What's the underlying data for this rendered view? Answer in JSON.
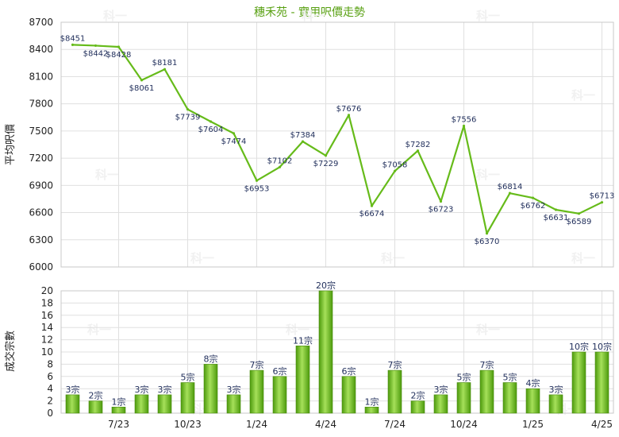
{
  "chart_data": [
    {
      "type": "line",
      "title": "穗禾苑 - 實用呎價走勢",
      "ylabel": "平均呎價",
      "ylim": [
        6000,
        8700
      ],
      "yticks": [
        6000,
        6300,
        6600,
        6900,
        7200,
        7500,
        7800,
        8100,
        8400,
        8700
      ],
      "grid": true,
      "color": "#66bb1a",
      "values": [
        8451,
        8442,
        8428,
        8061,
        8181,
        7739,
        7604,
        7474,
        6953,
        7102,
        7384,
        7229,
        7676,
        6674,
        7058,
        7282,
        6723,
        7556,
        6370,
        6814,
        6762,
        6631,
        6589,
        6713
      ],
      "labels": [
        "$8451",
        "$8442",
        "$8428",
        "$8061",
        "$8181",
        "$7739",
        "$7604",
        "$7474",
        "$6953",
        "$7102",
        "$7384",
        "$7229",
        "$7676",
        "$6674",
        "$7058",
        "$7282",
        "$6723",
        "$7556",
        "$6370",
        "$6814",
        "$6762",
        "$6631",
        "$6589",
        "$6713"
      ]
    },
    {
      "type": "bar",
      "ylabel": "成交宗數",
      "ylim": [
        0,
        20
      ],
      "yticks": [
        0,
        2,
        4,
        6,
        8,
        10,
        12,
        14,
        16,
        18,
        20
      ],
      "grid": true,
      "color": "#66bb1a",
      "values": [
        3,
        2,
        1,
        3,
        3,
        5,
        8,
        3,
        7,
        6,
        11,
        20,
        6,
        1,
        7,
        2,
        3,
        5,
        7,
        5,
        4,
        3,
        10,
        10
      ],
      "labels": [
        "3宗",
        "2宗",
        "1宗",
        "3宗",
        "3宗",
        "5宗",
        "8宗",
        "3宗",
        "7宗",
        "6宗",
        "11宗",
        "20宗",
        "6宗",
        "1宗",
        "7宗",
        "2宗",
        "3宗",
        "5宗",
        "7宗",
        "5宗",
        "4宗",
        "3宗",
        "10宗",
        "10宗"
      ],
      "x_tick_labels": [
        {
          "index": 2,
          "label": "7/23"
        },
        {
          "index": 5,
          "label": "10/23"
        },
        {
          "index": 8,
          "label": "1/24"
        },
        {
          "index": 11,
          "label": "4/24"
        },
        {
          "index": 14,
          "label": "7/24"
        },
        {
          "index": 17,
          "label": "10/24"
        },
        {
          "index": 20,
          "label": "1/25"
        },
        {
          "index": 23,
          "label": "4/25"
        }
      ]
    }
  ],
  "watermark": "科一"
}
